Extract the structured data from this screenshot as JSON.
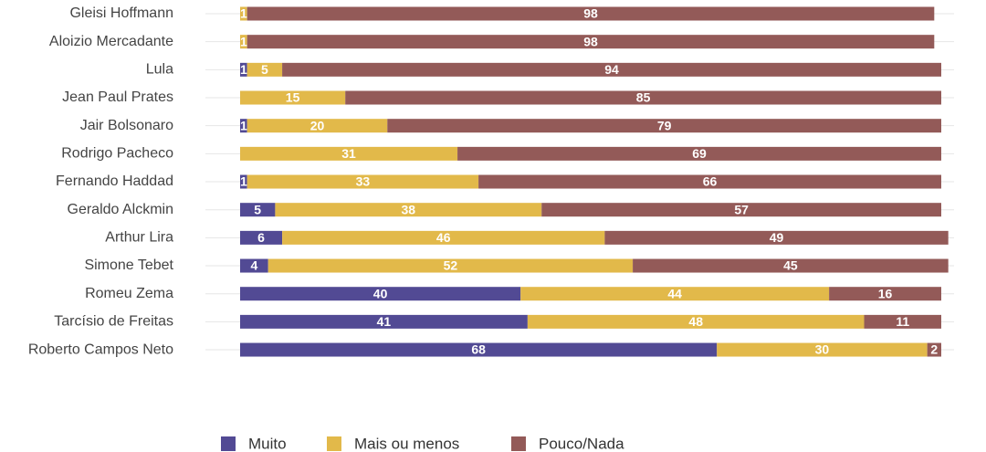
{
  "chart_data": {
    "type": "stacked-bar-horizontal",
    "categories": [
      "Gleisi Hoffmann",
      "Aloizio Mercadante",
      "Lula",
      "Jean Paul Prates",
      "Jair Bolsonaro",
      "Rodrigo Pacheco",
      "Fernando Haddad",
      "Geraldo Alckmin",
      "Arthur Lira",
      "Simone Tebet",
      "Romeu Zema",
      "Tarcísio de Freitas",
      "Roberto Campos Neto"
    ],
    "series": [
      {
        "name": "Muito",
        "color": "#524a94",
        "values": [
          null,
          null,
          1,
          null,
          1,
          null,
          1,
          5,
          6,
          4,
          40,
          41,
          68
        ]
      },
      {
        "name": "Mais ou menos",
        "color": "#e2b94a",
        "values": [
          1,
          1,
          5,
          15,
          20,
          31,
          33,
          38,
          46,
          52,
          44,
          48,
          30
        ]
      },
      {
        "name": "Pouco/Nada",
        "color": "#935a58",
        "values": [
          98,
          98,
          94,
          85,
          79,
          69,
          66,
          57,
          49,
          45,
          16,
          11,
          2
        ]
      }
    ],
    "xlim": [
      0,
      100
    ]
  }
}
